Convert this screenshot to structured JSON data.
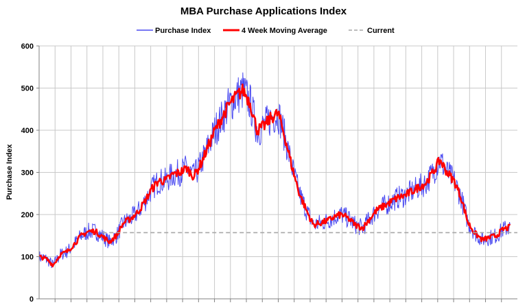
{
  "chart_data": {
    "type": "line",
    "title": "MBA Purchase Applications Index",
    "ylabel": "Purchase Index",
    "xlabel": "",
    "ylim": [
      0,
      600
    ],
    "yticks": [
      0,
      100,
      200,
      300,
      400,
      500,
      600
    ],
    "x_grid_count": 30,
    "grid": true,
    "legend_position": "top-center",
    "series": [
      {
        "name": "Purchase Index",
        "color": "#4a4af0",
        "noisy": true,
        "points": [
          [
            0,
            100
          ],
          [
            0.5,
            95
          ],
          [
            1,
            80
          ],
          [
            1.5,
            105
          ],
          [
            2,
            112
          ],
          [
            2.5,
            130
          ],
          [
            3,
            150
          ],
          [
            3.5,
            160
          ],
          [
            4,
            160
          ],
          [
            4.5,
            148
          ],
          [
            5,
            135
          ],
          [
            5.5,
            150
          ],
          [
            6,
            180
          ],
          [
            6.5,
            190
          ],
          [
            7,
            205
          ],
          [
            7.5,
            230
          ],
          [
            8,
            260
          ],
          [
            8.5,
            280
          ],
          [
            9,
            280
          ],
          [
            9.5,
            295
          ],
          [
            10,
            300
          ],
          [
            10.5,
            310
          ],
          [
            11,
            290
          ],
          [
            11.5,
            320
          ],
          [
            12,
            360
          ],
          [
            12.5,
            400
          ],
          [
            13,
            430
          ],
          [
            13.5,
            460
          ],
          [
            14,
            480
          ],
          [
            14.5,
            495
          ],
          [
            15,
            465
          ],
          [
            15.5,
            400
          ],
          [
            16,
            410
          ],
          [
            16.5,
            430
          ],
          [
            17,
            440
          ],
          [
            17.5,
            380
          ],
          [
            18,
            310
          ],
          [
            18.5,
            250
          ],
          [
            19,
            210
          ],
          [
            19.5,
            175
          ],
          [
            20,
            180
          ],
          [
            20.5,
            185
          ],
          [
            21,
            195
          ],
          [
            21.5,
            200
          ],
          [
            22,
            190
          ],
          [
            22.5,
            175
          ],
          [
            23,
            168
          ],
          [
            23.5,
            190
          ],
          [
            24,
            210
          ],
          [
            24.5,
            220
          ],
          [
            25,
            230
          ],
          [
            25.5,
            240
          ],
          [
            26,
            245
          ],
          [
            26.5,
            255
          ],
          [
            27,
            265
          ],
          [
            27.5,
            275
          ],
          [
            28,
            300
          ],
          [
            28.5,
            330
          ],
          [
            29,
            300
          ],
          [
            29.5,
            280
          ],
          [
            30,
            240
          ],
          [
            30.5,
            180
          ],
          [
            31,
            155
          ],
          [
            31.5,
            140
          ],
          [
            32,
            145
          ],
          [
            32.5,
            150
          ],
          [
            33,
            165
          ],
          [
            33.5,
            170
          ]
        ]
      },
      {
        "name": "4 Week Moving Average",
        "color": "#ff0000",
        "noisy": false,
        "points": [
          [
            0,
            100
          ],
          [
            0.5,
            95
          ],
          [
            1,
            80
          ],
          [
            1.5,
            105
          ],
          [
            2,
            112
          ],
          [
            2.5,
            130
          ],
          [
            3,
            150
          ],
          [
            3.5,
            160
          ],
          [
            4,
            160
          ],
          [
            4.5,
            148
          ],
          [
            5,
            135
          ],
          [
            5.5,
            150
          ],
          [
            6,
            180
          ],
          [
            6.5,
            190
          ],
          [
            7,
            205
          ],
          [
            7.5,
            230
          ],
          [
            8,
            260
          ],
          [
            8.5,
            280
          ],
          [
            9,
            280
          ],
          [
            9.5,
            295
          ],
          [
            10,
            300
          ],
          [
            10.5,
            310
          ],
          [
            11,
            290
          ],
          [
            11.5,
            320
          ],
          [
            12,
            360
          ],
          [
            12.5,
            400
          ],
          [
            13,
            430
          ],
          [
            13.5,
            460
          ],
          [
            14,
            480
          ],
          [
            14.5,
            495
          ],
          [
            15,
            465
          ],
          [
            15.5,
            400
          ],
          [
            16,
            410
          ],
          [
            16.5,
            430
          ],
          [
            17,
            440
          ],
          [
            17.5,
            380
          ],
          [
            18,
            310
          ],
          [
            18.5,
            250
          ],
          [
            19,
            210
          ],
          [
            19.5,
            175
          ],
          [
            20,
            180
          ],
          [
            20.5,
            185
          ],
          [
            21,
            195
          ],
          [
            21.5,
            200
          ],
          [
            22,
            190
          ],
          [
            22.5,
            175
          ],
          [
            23,
            168
          ],
          [
            23.5,
            190
          ],
          [
            24,
            210
          ],
          [
            24.5,
            220
          ],
          [
            25,
            230
          ],
          [
            25.5,
            240
          ],
          [
            26,
            245
          ],
          [
            26.5,
            255
          ],
          [
            27,
            265
          ],
          [
            27.5,
            275
          ],
          [
            28,
            300
          ],
          [
            28.5,
            330
          ],
          [
            29,
            300
          ],
          [
            29.5,
            280
          ],
          [
            30,
            240
          ],
          [
            30.5,
            180
          ],
          [
            31,
            155
          ],
          [
            31.5,
            140
          ],
          [
            32,
            145
          ],
          [
            32.5,
            150
          ],
          [
            33,
            165
          ],
          [
            33.5,
            170
          ]
        ]
      },
      {
        "name": "Current",
        "color": "#a6a6a6",
        "dashed": true,
        "value": 157,
        "x_start": 4.5,
        "x_end": 34
      }
    ],
    "x_range": [
      0,
      34
    ]
  }
}
